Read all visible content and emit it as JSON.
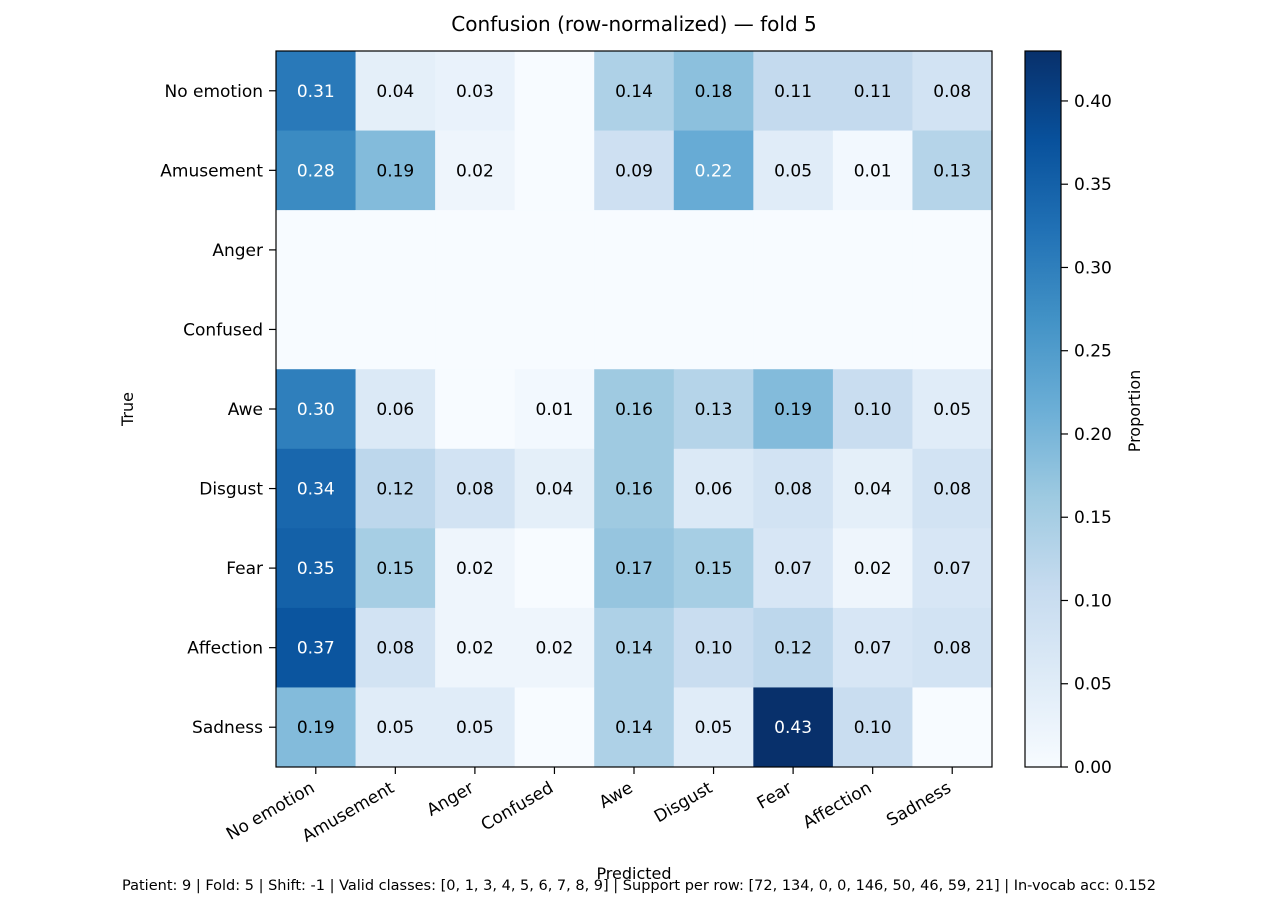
{
  "chart_data": {
    "type": "heatmap",
    "title": "Confusion (row-normalized) — fold 5",
    "xlabel": "Predicted",
    "ylabel": "True",
    "x_categories": [
      "No emotion",
      "Amusement",
      "Anger",
      "Confused",
      "Awe",
      "Disgust",
      "Fear",
      "Affection",
      "Sadness"
    ],
    "y_categories": [
      "No emotion",
      "Amusement",
      "Anger",
      "Confused",
      "Awe",
      "Disgust",
      "Fear",
      "Affection",
      "Sadness"
    ],
    "values": [
      [
        0.31,
        0.04,
        0.03,
        null,
        0.14,
        0.18,
        0.11,
        0.11,
        0.08
      ],
      [
        0.28,
        0.19,
        0.02,
        null,
        0.09,
        0.22,
        0.05,
        0.01,
        0.13
      ],
      [
        null,
        null,
        null,
        null,
        null,
        null,
        null,
        null,
        null
      ],
      [
        null,
        null,
        null,
        null,
        null,
        null,
        null,
        null,
        null
      ],
      [
        0.3,
        0.06,
        null,
        0.01,
        0.16,
        0.13,
        0.19,
        0.1,
        0.05
      ],
      [
        0.34,
        0.12,
        0.08,
        0.04,
        0.16,
        0.06,
        0.08,
        0.04,
        0.08
      ],
      [
        0.35,
        0.15,
        0.02,
        null,
        0.17,
        0.15,
        0.07,
        0.02,
        0.07
      ],
      [
        0.37,
        0.08,
        0.02,
        0.02,
        0.14,
        0.1,
        0.12,
        0.07,
        0.08
      ],
      [
        0.19,
        0.05,
        0.05,
        null,
        0.14,
        0.05,
        0.43,
        0.1,
        null
      ]
    ],
    "colorbar": {
      "label": "Proportion",
      "range": [
        0,
        0.43
      ],
      "ticks": [
        "0.00",
        "0.05",
        "0.10",
        "0.15",
        "0.20",
        "0.25",
        "0.30",
        "0.35",
        "0.40"
      ],
      "colormap": "Blues"
    },
    "footer": "Patient: 9 | Fold: 5 | Shift: -1 | Valid classes: [0, 1, 3, 4, 5, 6, 7, 8, 9] | Support per row: [72, 134, 0, 0, 146, 50, 46, 59, 21] | In-vocab acc: 0.152"
  }
}
